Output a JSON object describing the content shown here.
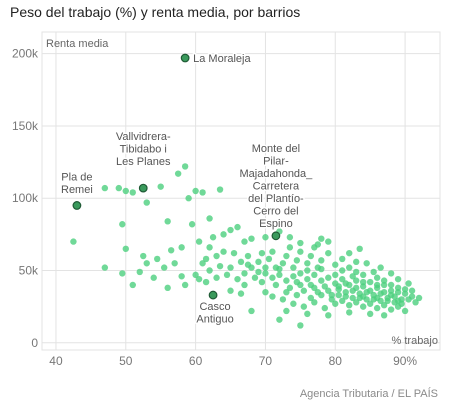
{
  "chart_data": {
    "type": "scatter",
    "title": "Peso del trabajo (%) y renta media, por barrios",
    "xlabel": "% trabajo",
    "ylabel": "Renta media",
    "xlim": [
      38,
      95
    ],
    "ylim": [
      -5000,
      215000
    ],
    "x_ticks": [
      40,
      50,
      60,
      70,
      80,
      90
    ],
    "x_tick_labels": [
      "40",
      "50",
      "60",
      "70",
      "80",
      "90%"
    ],
    "y_ticks": [
      0,
      50000,
      100000,
      150000,
      200000
    ],
    "y_tick_labels": [
      "0",
      "50k",
      "100k",
      "150k",
      "200k"
    ],
    "grid": true,
    "source": "Agencia Tributaria / EL PAÍS",
    "colors": {
      "points": "#4ccf7e",
      "highlight_fill": "#3a9a5c",
      "highlight_stroke": "#1f5a35",
      "grid": "#e3e3e3"
    },
    "highlighted": [
      {
        "label_lines": [
          "La Moraleja"
        ],
        "x": 58.5,
        "y": 197000
      },
      {
        "label_lines": [
          "Vallvidrera-",
          "Tibidabo i",
          "Les Planes"
        ],
        "x": 52.5,
        "y": 107000
      },
      {
        "label_lines": [
          "Pla de",
          "Remei"
        ],
        "x": 43,
        "y": 95000
      },
      {
        "label_lines": [
          "Monte del",
          "Pilar-",
          "Majadahonda_",
          "Carretera",
          "del Plantío-",
          "Cerro del",
          "Espino"
        ],
        "x": 71.5,
        "y": 74000
      },
      {
        "label_lines": [
          "Casco",
          "Antiguo"
        ],
        "x": 62.5,
        "y": 33000
      }
    ],
    "points": [
      [
        42.5,
        70000
      ],
      [
        47,
        107000
      ],
      [
        49,
        107000
      ],
      [
        50,
        105000
      ],
      [
        51,
        104000
      ],
      [
        55,
        108000
      ],
      [
        58.5,
        122000
      ],
      [
        57.5,
        117000
      ],
      [
        60,
        105000
      ],
      [
        61,
        104000
      ],
      [
        63.5,
        106000
      ],
      [
        59,
        100000
      ],
      [
        49.5,
        82000
      ],
      [
        53,
        97000
      ],
      [
        56,
        84000
      ],
      [
        59.5,
        82000
      ],
      [
        62,
        86000
      ],
      [
        65,
        78000
      ],
      [
        66,
        80000
      ],
      [
        64,
        75000
      ],
      [
        72,
        77000
      ],
      [
        68,
        72000
      ],
      [
        60.5,
        70000
      ],
      [
        70,
        73000
      ],
      [
        62.5,
        73000
      ],
      [
        67,
        70000
      ],
      [
        78,
        72000
      ],
      [
        79,
        70000
      ],
      [
        50,
        65000
      ],
      [
        52.5,
        60000
      ],
      [
        53,
        55000
      ],
      [
        57,
        55000
      ],
      [
        47,
        52000
      ],
      [
        49.5,
        48000
      ],
      [
        51,
        40000
      ],
      [
        54,
        45000
      ],
      [
        56,
        38000
      ],
      [
        58.5,
        40000
      ],
      [
        60,
        47000
      ],
      [
        55.5,
        52000
      ],
      [
        56.5,
        64000
      ],
      [
        58,
        66000
      ],
      [
        61,
        55000
      ],
      [
        61.5,
        58000
      ],
      [
        63,
        60000
      ],
      [
        62,
        66000
      ],
      [
        64,
        63000
      ],
      [
        65.5,
        62000
      ],
      [
        65,
        52000
      ],
      [
        66.5,
        56000
      ],
      [
        67.5,
        60000
      ],
      [
        68,
        52000
      ],
      [
        69,
        56000
      ],
      [
        69.5,
        62000
      ],
      [
        70.5,
        58000
      ],
      [
        71,
        63000
      ],
      [
        72.5,
        55000
      ],
      [
        73,
        60000
      ],
      [
        73.5,
        66000
      ],
      [
        74,
        52000
      ],
      [
        74.5,
        57000
      ],
      [
        75,
        63000
      ],
      [
        76,
        55000
      ],
      [
        76.5,
        60000
      ],
      [
        77,
        66000
      ],
      [
        77.5,
        52000
      ],
      [
        78,
        57000
      ],
      [
        79,
        62000
      ],
      [
        80,
        54000
      ],
      [
        81,
        58000
      ],
      [
        82,
        52000
      ],
      [
        83,
        56000
      ],
      [
        63,
        45000
      ],
      [
        64.5,
        47000
      ],
      [
        66,
        44000
      ],
      [
        67,
        48000
      ],
      [
        68.5,
        45000
      ],
      [
        69.5,
        42000
      ],
      [
        70,
        48000
      ],
      [
        71,
        45000
      ],
      [
        71.5,
        40000
      ],
      [
        72,
        47000
      ],
      [
        73,
        43000
      ],
      [
        73.5,
        38000
      ],
      [
        74,
        46000
      ],
      [
        74.5,
        42000
      ],
      [
        75,
        48000
      ],
      [
        75.5,
        36000
      ],
      [
        76,
        44000
      ],
      [
        76.5,
        40000
      ],
      [
        77,
        47000
      ],
      [
        77.5,
        35000
      ],
      [
        78,
        43000
      ],
      [
        78.5,
        39000
      ],
      [
        79,
        45000
      ],
      [
        79.5,
        33000
      ],
      [
        80,
        41000
      ],
      [
        80.5,
        37000
      ],
      [
        81,
        44000
      ],
      [
        81.5,
        32000
      ],
      [
        82,
        40000
      ],
      [
        82.5,
        36000
      ],
      [
        83,
        43000
      ],
      [
        83.5,
        31000
      ],
      [
        84,
        39000
      ],
      [
        84.5,
        35000
      ],
      [
        85,
        42000
      ],
      [
        85.5,
        30000
      ],
      [
        86,
        38000
      ],
      [
        86.5,
        34000
      ],
      [
        87,
        40000
      ],
      [
        87.5,
        29000
      ],
      [
        88,
        36000
      ],
      [
        88.5,
        32000
      ],
      [
        89,
        38000
      ],
      [
        89.5,
        27000
      ],
      [
        90,
        34000
      ],
      [
        90.5,
        30000
      ],
      [
        91,
        32000
      ],
      [
        91.5,
        28000
      ],
      [
        79.5,
        30000
      ],
      [
        80,
        27000
      ],
      [
        81,
        29000
      ],
      [
        82,
        26000
      ],
      [
        83,
        28000
      ],
      [
        84,
        25000
      ],
      [
        85,
        27000
      ],
      [
        86,
        24000
      ],
      [
        87,
        26000
      ],
      [
        88,
        23000
      ],
      [
        89,
        25000
      ],
      [
        90,
        22000
      ],
      [
        80.5,
        33000
      ],
      [
        81.5,
        35000
      ],
      [
        82.5,
        31000
      ],
      [
        83.5,
        34000
      ],
      [
        84.5,
        30000
      ],
      [
        85.5,
        33000
      ],
      [
        86.5,
        29000
      ],
      [
        87.5,
        31000
      ],
      [
        88.5,
        28000
      ],
      [
        89.5,
        30000
      ],
      [
        84,
        32000
      ],
      [
        86,
        31000
      ],
      [
        70,
        35000
      ],
      [
        71,
        32000
      ],
      [
        72.5,
        30000
      ],
      [
        74,
        27000
      ],
      [
        75.5,
        25000
      ],
      [
        77,
        28000
      ],
      [
        78.5,
        24000
      ],
      [
        73,
        22000
      ],
      [
        76,
        20000
      ],
      [
        79,
        19000
      ],
      [
        82,
        21000
      ],
      [
        85,
        20000
      ],
      [
        87,
        19000
      ],
      [
        72,
        16000
      ],
      [
        75,
        12000
      ],
      [
        68,
        22000
      ],
      [
        66.5,
        34000
      ],
      [
        65,
        36000
      ],
      [
        86,
        45000
      ],
      [
        84,
        47000
      ],
      [
        87,
        43000
      ],
      [
        88,
        40000
      ],
      [
        89,
        44000
      ],
      [
        90,
        37000
      ],
      [
        91,
        36000
      ],
      [
        92,
        31000
      ],
      [
        80,
        47000
      ],
      [
        82.5,
        46000
      ],
      [
        85.5,
        49000
      ],
      [
        76,
        50000
      ],
      [
        78,
        51000
      ],
      [
        81,
        50000
      ],
      [
        83,
        49000
      ],
      [
        72,
        51000
      ],
      [
        70,
        52000
      ],
      [
        67,
        40000
      ],
      [
        62,
        50000
      ],
      [
        63.5,
        53000
      ],
      [
        60.5,
        44000
      ],
      [
        61.5,
        42000
      ],
      [
        58,
        46000
      ],
      [
        54.5,
        58000
      ],
      [
        52,
        49000
      ],
      [
        75,
        69000
      ],
      [
        77.5,
        68000
      ],
      [
        73.5,
        73000
      ],
      [
        83.5,
        65000
      ],
      [
        82,
        62000
      ],
      [
        84.5,
        55000
      ],
      [
        86.5,
        52000
      ],
      [
        88,
        48000
      ],
      [
        89,
        35000
      ],
      [
        90.5,
        41000
      ],
      [
        74.5,
        33000
      ],
      [
        76.5,
        31000
      ],
      [
        78,
        33000
      ],
      [
        79,
        36000
      ],
      [
        80.5,
        39000
      ],
      [
        81.5,
        41000
      ],
      [
        83,
        38000
      ],
      [
        84,
        42000
      ],
      [
        85,
        36000
      ],
      [
        86,
        40000
      ],
      [
        87,
        35000
      ],
      [
        88,
        33000
      ],
      [
        89,
        29000
      ],
      [
        77,
        38000
      ],
      [
        75,
        40000
      ],
      [
        73,
        35000
      ],
      [
        71.5,
        52000
      ],
      [
        69,
        49000
      ],
      [
        67.5,
        54000
      ]
    ]
  }
}
